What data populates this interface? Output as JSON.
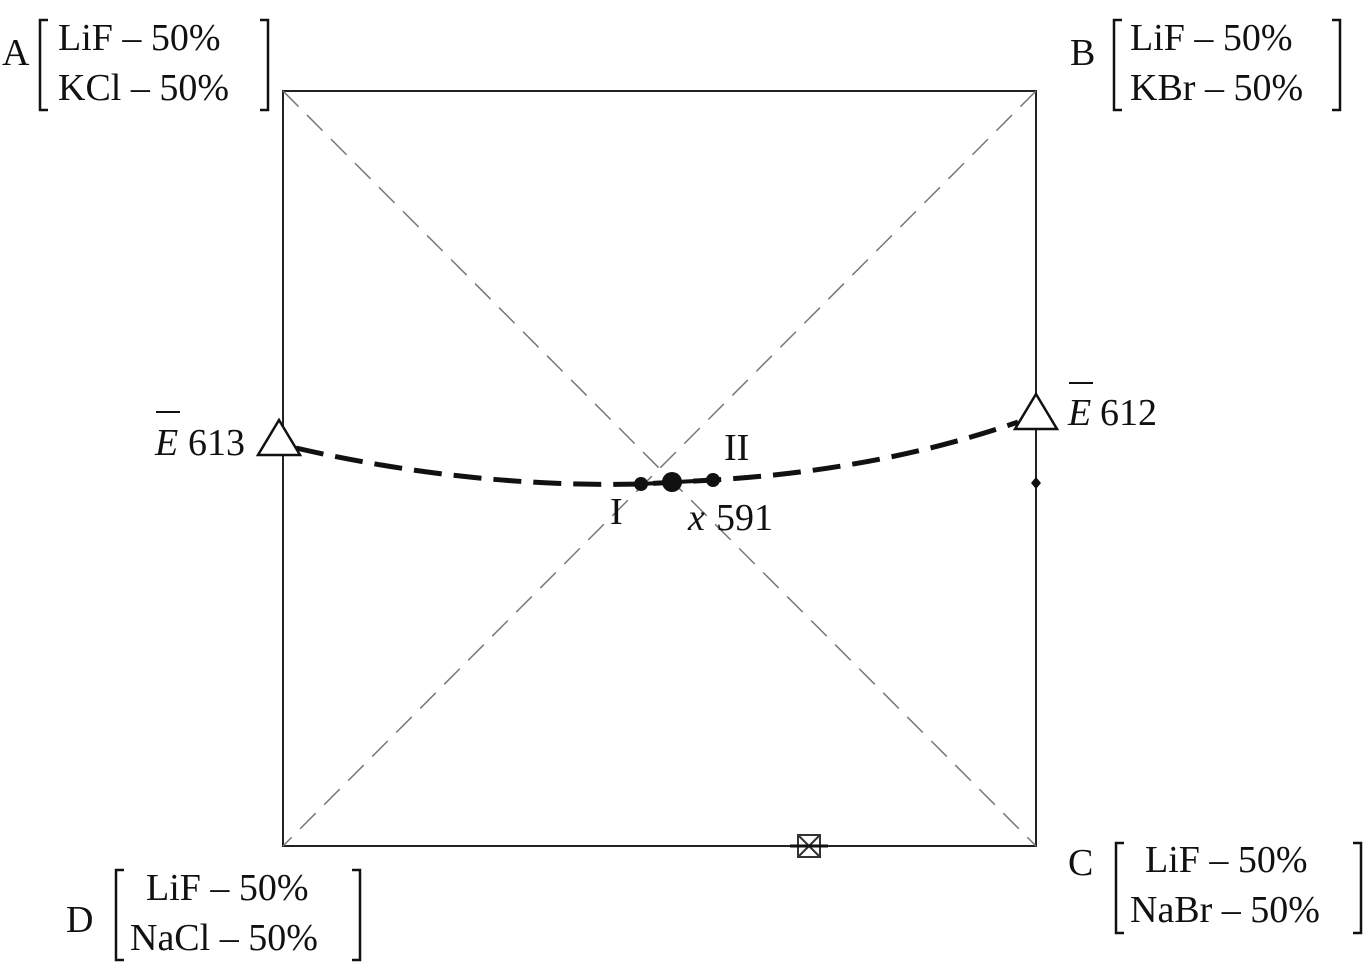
{
  "corners": {
    "A": {
      "letter": "A",
      "line1": "LiF – 50%",
      "line2": "KCl – 50%"
    },
    "B": {
      "letter": "B",
      "line1": "LiF – 50%",
      "line2": "KBr – 50%"
    },
    "C": {
      "letter": "C",
      "line1": "LiF – 50%",
      "line2": "NaBr – 50%"
    },
    "D": {
      "letter": "D",
      "line1": "LiF – 50%",
      "line2": "NaCl – 50%"
    }
  },
  "points": {
    "e_left": {
      "symbol": "E",
      "value": "613"
    },
    "e_right": {
      "symbol": "E",
      "value": "612"
    },
    "point_I": "I",
    "point_II": "II",
    "point_x": {
      "symbol": "x",
      "value": "591"
    }
  }
}
